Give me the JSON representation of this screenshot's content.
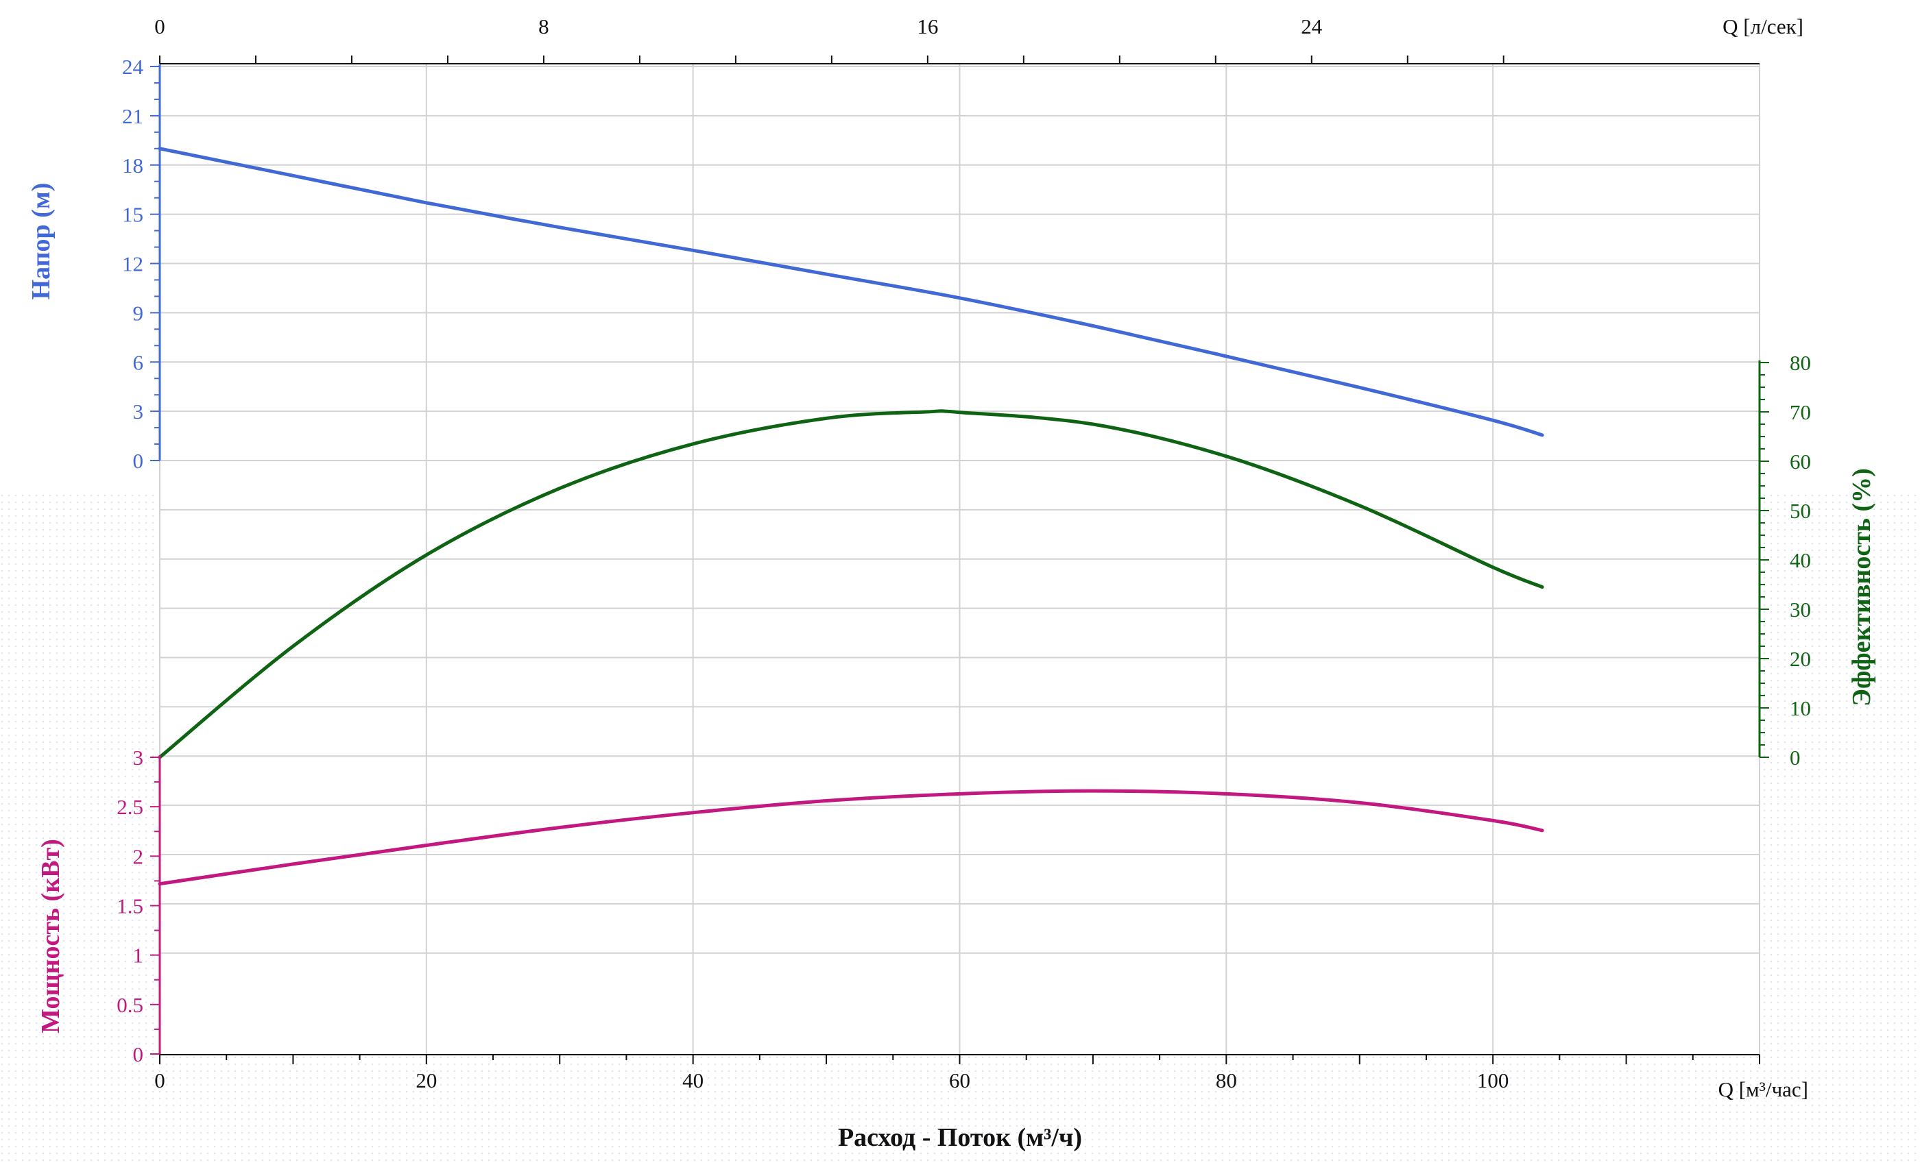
{
  "chart_data": {
    "type": "line",
    "xlabel": "Расход - Поток (м³/ч)",
    "x_axis": {
      "unit_label": "Q [м³/час]",
      "range": [
        0,
        120
      ],
      "tick_labels": [
        "0",
        "20",
        "40",
        "60",
        "80",
        "100"
      ]
    },
    "x2_axis": {
      "unit_label": "Q [л/сек]",
      "range": [
        0,
        33.3333
      ],
      "tick_labels": [
        "0",
        "8",
        "16",
        "24"
      ]
    },
    "axes": {
      "head": {
        "label": "Напор (м)",
        "color": "#4169d6",
        "range": [
          0,
          24
        ],
        "tick_labels": [
          "0",
          "3",
          "6",
          "9",
          "12",
          "15",
          "18",
          "21",
          "24"
        ]
      },
      "efficiency": {
        "label": "Эффективность (%)",
        "color": "#0f6414",
        "range": [
          0,
          80
        ],
        "tick_labels": [
          "0",
          "10",
          "20",
          "30",
          "40",
          "50",
          "60",
          "70",
          "80"
        ]
      },
      "power": {
        "label": "Мощность (кВт)",
        "color": "#c21880",
        "range": [
          0,
          3
        ],
        "tick_labels": [
          "0",
          "0.5",
          "1",
          "1.5",
          "2",
          "2.5",
          "3"
        ]
      }
    },
    "grid": true,
    "series": [
      {
        "axis": "head",
        "color": "#4169d6",
        "x": [
          0,
          10,
          20,
          30,
          40,
          50,
          60,
          70,
          80,
          90,
          100,
          103.7
        ],
        "y": [
          19.0,
          17.35,
          15.7,
          14.2,
          12.8,
          11.35,
          9.9,
          8.2,
          6.35,
          4.45,
          2.45,
          1.55
        ]
      },
      {
        "axis": "efficiency",
        "color": "#0f6414",
        "x": [
          0,
          10,
          20,
          30,
          40,
          50,
          57.5,
          60,
          70,
          80,
          90,
          100,
          103.7
        ],
        "y": [
          0,
          22.5,
          41.0,
          54.5,
          63.5,
          68.7,
          70.0,
          69.9,
          67.5,
          61.0,
          51.0,
          38.5,
          34.5
        ]
      },
      {
        "axis": "power",
        "color": "#c21880",
        "x": [
          0,
          10,
          20,
          30,
          40,
          50,
          60,
          70,
          80,
          90,
          100,
          103.7
        ],
        "y": [
          1.72,
          1.92,
          2.11,
          2.29,
          2.44,
          2.56,
          2.63,
          2.66,
          2.63,
          2.54,
          2.36,
          2.26
        ]
      }
    ]
  }
}
